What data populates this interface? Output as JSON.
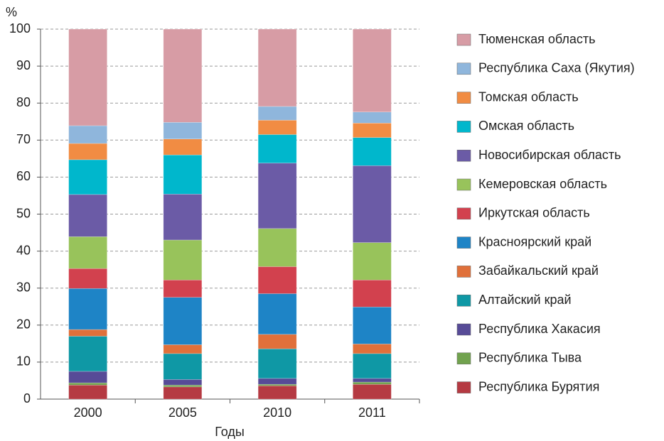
{
  "chart_data": {
    "type": "stacked_bar",
    "y_unit_label": "%",
    "xlabel": "Годы",
    "categories": [
      "2000",
      "2005",
      "2010",
      "2011"
    ],
    "ylim": [
      0,
      100
    ],
    "yticks": [
      0,
      10,
      20,
      30,
      40,
      50,
      60,
      70,
      80,
      90,
      100
    ],
    "grid": true,
    "series": [
      {
        "name": "Республика Бурятия",
        "color": "#b53a42",
        "values": [
          3.8,
          3.3,
          3.6,
          4.0
        ]
      },
      {
        "name": "Республика Тыва",
        "color": "#71a24e",
        "values": [
          0.6,
          0.5,
          0.4,
          0.6
        ]
      },
      {
        "name": "Республика Хакасия",
        "color": "#574b97",
        "values": [
          3.1,
          1.5,
          1.6,
          1.0
        ]
      },
      {
        "name": "Алтайский край",
        "color": "#0f98a5",
        "values": [
          9.5,
          7.0,
          8.0,
          6.7
        ]
      },
      {
        "name": "Забайкальский край",
        "color": "#e0703a",
        "values": [
          1.8,
          2.4,
          3.9,
          2.6
        ]
      },
      {
        "name": "Красноярский край",
        "color": "#1e84c6",
        "values": [
          11.1,
          12.8,
          11.0,
          10.0
        ]
      },
      {
        "name": "Иркутская область",
        "color": "#d2414e",
        "values": [
          5.4,
          4.7,
          7.3,
          7.3
        ]
      },
      {
        "name": "Кемеровская область",
        "color": "#98c35b",
        "values": [
          8.6,
          10.8,
          10.3,
          10.1
        ]
      },
      {
        "name": "Новосибирская область",
        "color": "#6b5ba6",
        "values": [
          11.4,
          12.4,
          17.7,
          20.8
        ]
      },
      {
        "name": "Омская область",
        "color": "#00b7cc",
        "values": [
          9.4,
          10.6,
          7.7,
          7.6
        ]
      },
      {
        "name": "Томская область",
        "color": "#f18c43",
        "values": [
          4.4,
          4.3,
          3.9,
          3.9
        ]
      },
      {
        "name": "Республика Саха (Якутия)",
        "color": "#8fb6dc",
        "values": [
          4.8,
          4.5,
          3.7,
          3.0
        ]
      },
      {
        "name": "Тюменская область",
        "color": "#d79ca5",
        "values": [
          26.1,
          25.2,
          20.9,
          22.4
        ]
      }
    ]
  }
}
